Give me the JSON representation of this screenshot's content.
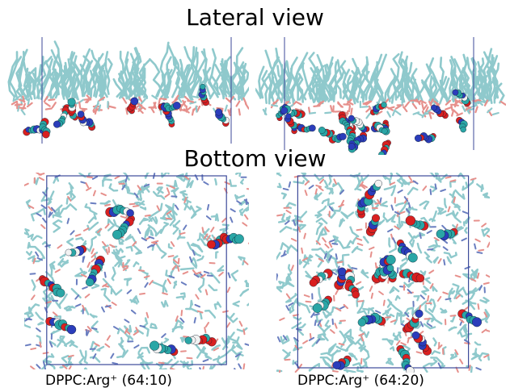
{
  "headings": {
    "lateral": "Lateral view",
    "bottom": "Bottom view"
  },
  "captions": {
    "left": "DPPC:Arg⁺ (64:10)",
    "right": "DPPC:Arg⁺ (64:20)"
  },
  "colors": {
    "lipid_tail": "#8fc9cc",
    "lipid_head": "#e6908c",
    "arg_carbon": "#2aa6a6",
    "arg_nitrogen": "#2b3dbb",
    "arg_oxygen": "#d92020",
    "arg_hydrogen": "#f2f2f2",
    "box_line": "#3c4a9a"
  },
  "panels": [
    {
      "name": "lateral-view-64-10",
      "view": "lateral",
      "arginine_count": 10
    },
    {
      "name": "lateral-view-64-20",
      "view": "lateral",
      "arginine_count": 20
    },
    {
      "name": "bottom-view-64-10",
      "view": "bottom",
      "arginine_count": 10
    },
    {
      "name": "bottom-view-64-20",
      "view": "bottom",
      "arginine_count": 20
    }
  ]
}
